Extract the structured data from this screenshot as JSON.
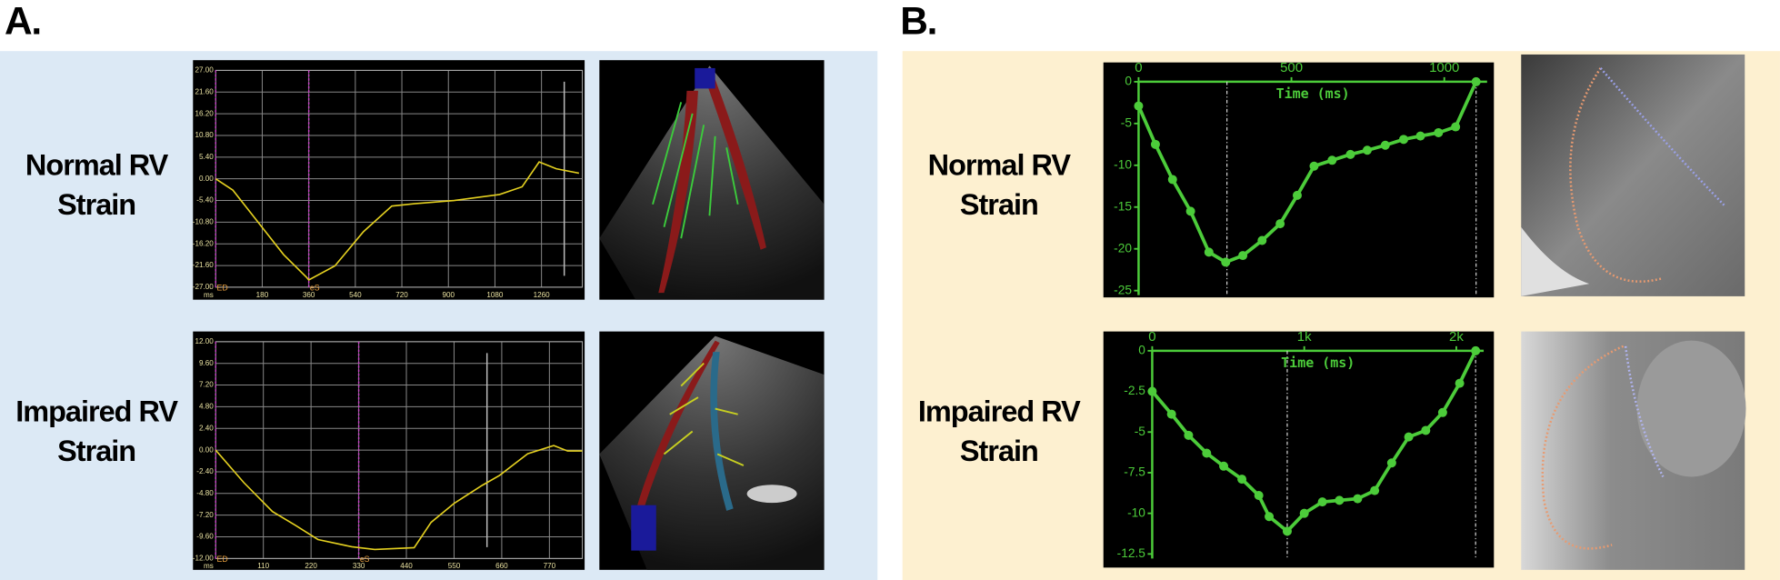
{
  "panels": [
    {
      "label": "A.",
      "rows": [
        "Normal RV Strain",
        "Impaired RV Strain"
      ]
    },
    {
      "label": "B.",
      "rows": [
        "Normal RV Strain",
        "Impaired RV Strain"
      ]
    }
  ],
  "chart_data": [
    {
      "type": "line",
      "xlabel": "ms",
      "grid": true,
      "markers": false,
      "xaxis": "bottom",
      "color": "#e4d020",
      "xlim": [
        0,
        1418
      ],
      "xticks": [
        180,
        360,
        540,
        720,
        900,
        1080,
        1260
      ],
      "ylim": [
        -27,
        27
      ],
      "yticks": [
        {
          "value": 27,
          "label": "27.00"
        },
        {
          "value": 21.6,
          "label": "21.60"
        },
        {
          "value": 16.2,
          "label": "16.20"
        },
        {
          "value": 10.8,
          "label": "10.80"
        },
        {
          "value": 5.4,
          "label": "5.40"
        },
        {
          "value": 0,
          "label": "0.00"
        },
        {
          "value": -5.4,
          "label": "-5.40"
        },
        {
          "value": -10.8,
          "label": "-10.80"
        },
        {
          "value": -16.2,
          "label": "-16.20"
        },
        {
          "value": -21.6,
          "label": "-21.60"
        },
        {
          "value": -27,
          "label": "-27.00"
        }
      ],
      "x": [
        0,
        66,
        176,
        263,
        351,
        360,
        461,
        571,
        681,
        769,
        922,
        1098,
        1185,
        1251,
        1317,
        1405
      ],
      "values": [
        0,
        -2.8,
        -11.8,
        -18.9,
        -24.5,
        -25.2,
        -21.7,
        -13.2,
        -6.8,
        -6.2,
        -5.4,
        -3.9,
        -2.0,
        4.2,
        2.5,
        1.4
      ],
      "events": [
        {
          "x": 0,
          "label": "ED"
        },
        {
          "x": 360,
          "label": "eS"
        }
      ],
      "event_color": "#c83cc8",
      "reference_x": [
        1348
      ]
    },
    {
      "type": "line",
      "xlabel": "ms",
      "grid": true,
      "markers": false,
      "xaxis": "bottom",
      "color": "#e4d020",
      "xlim": [
        0,
        846
      ],
      "xticks": [
        110,
        220,
        330,
        440,
        550,
        660,
        770
      ],
      "ylim": [
        -12,
        12
      ],
      "yticks": [
        {
          "value": 12,
          "label": "12.00"
        },
        {
          "value": 9.6,
          "label": "9.60"
        },
        {
          "value": 7.2,
          "label": "7.20"
        },
        {
          "value": 4.8,
          "label": "4.80"
        },
        {
          "value": 2.4,
          "label": "2.40"
        },
        {
          "value": 0,
          "label": "0.00"
        },
        {
          "value": -2.4,
          "label": "-2.40"
        },
        {
          "value": -4.8,
          "label": "-4.80"
        },
        {
          "value": -7.2,
          "label": "-7.20"
        },
        {
          "value": -9.6,
          "label": "-9.60"
        },
        {
          "value": -12,
          "label": "-12.00"
        }
      ],
      "x": [
        0,
        65,
        131,
        183,
        236,
        314,
        367,
        458,
        497,
        550,
        615,
        655,
        720,
        780,
        812,
        846
      ],
      "values": [
        0,
        -3.6,
        -6.8,
        -8.3,
        -9.9,
        -10.7,
        -11.0,
        -10.8,
        -8.0,
        -5.9,
        -3.9,
        -2.8,
        -0.4,
        0.5,
        -0.1,
        -0.1
      ],
      "events": [
        {
          "x": 0,
          "label": "ED"
        },
        {
          "x": 330,
          "label": "eS"
        }
      ],
      "event_color": "#c83cc8",
      "reference_x": [
        626
      ]
    },
    {
      "type": "line",
      "xlabel": "Time (ms)",
      "grid": false,
      "markers": true,
      "xaxis": "top",
      "color": "#4ccc3a",
      "xlim": [
        0,
        1140
      ],
      "xticks": [
        0,
        500,
        1000
      ],
      "ylim": [
        -25,
        0
      ],
      "yticks": [
        0,
        -5,
        -10,
        -15,
        -20,
        -25
      ],
      "x": [
        0,
        55,
        111,
        170,
        230,
        285,
        341,
        404,
        463,
        519,
        574,
        633,
        693,
        748,
        807,
        867,
        922,
        981,
        1037,
        1104
      ],
      "values": [
        -2.9,
        -7.5,
        -11.7,
        -15.5,
        -20.4,
        -21.6,
        -20.8,
        -19.0,
        -17.0,
        -13.6,
        -10.1,
        -9.4,
        -8.7,
        -8.2,
        -7.6,
        -6.9,
        -6.5,
        -6.1,
        -5.4,
        0
      ],
      "reference_x": [
        289,
        1104
      ]
    },
    {
      "type": "line",
      "xlabel": "Time (ms)",
      "grid": false,
      "markers": true,
      "xaxis": "top",
      "color": "#4ccc3a",
      "xlim": [
        0,
        2180
      ],
      "xticks": [
        0,
        {
          "value": 1000,
          "label": "1k"
        },
        {
          "value": 2000,
          "label": "2k"
        }
      ],
      "ylim": [
        -12.5,
        0
      ],
      "yticks": [
        0,
        -2.5,
        -5,
        -7.5,
        -10,
        -12.5
      ],
      "x": [
        0,
        127,
        239,
        358,
        470,
        590,
        701,
        769,
        888,
        1000,
        1119,
        1231,
        1351,
        1463,
        1575,
        1687,
        1799,
        1910,
        2022,
        2127
      ],
      "values": [
        -2.5,
        -3.9,
        -5.2,
        -6.3,
        -7.1,
        -7.9,
        -8.9,
        -10.2,
        -11.1,
        -10.0,
        -9.3,
        -9.2,
        -9.1,
        -8.6,
        -6.9,
        -5.3,
        -4.9,
        -3.8,
        -2.0,
        0
      ],
      "reference_x": [
        888,
        2127
      ]
    }
  ]
}
